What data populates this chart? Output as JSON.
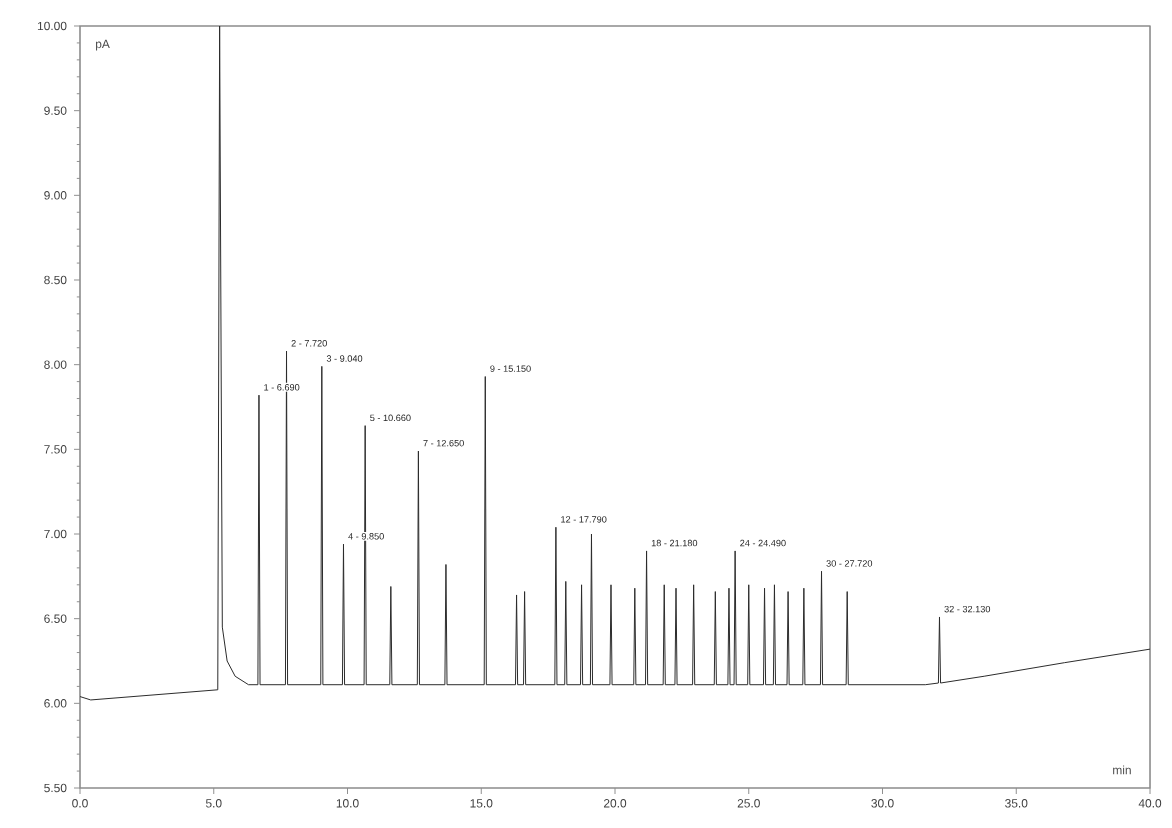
{
  "chart_data": {
    "type": "line",
    "xlabel": "min",
    "ylabel": "pA",
    "x": [
      0,
      0.4,
      5.15,
      5.22,
      5.32,
      5.5,
      5.8,
      6.3,
      6.65,
      6.69,
      6.73,
      7.68,
      7.72,
      7.76,
      9.0,
      9.04,
      9.08,
      9.81,
      9.85,
      9.89,
      10.62,
      10.66,
      10.7,
      11.58,
      11.62,
      11.66,
      12.61,
      12.65,
      12.69,
      13.64,
      13.68,
      13.72,
      15.11,
      15.15,
      15.19,
      16.28,
      16.32,
      16.36,
      16.58,
      16.62,
      16.66,
      17.75,
      17.79,
      17.83,
      18.12,
      18.16,
      18.2,
      18.71,
      18.75,
      18.79,
      19.08,
      19.12,
      19.16,
      19.81,
      19.85,
      19.89,
      20.7,
      20.74,
      20.78,
      21.14,
      21.18,
      21.22,
      21.8,
      21.84,
      21.88,
      22.24,
      22.28,
      22.32,
      22.9,
      22.94,
      22.98,
      23.71,
      23.75,
      23.79,
      24.22,
      24.26,
      24.3,
      24.45,
      24.49,
      24.53,
      24.96,
      25.0,
      25.04,
      25.55,
      25.59,
      25.63,
      25.92,
      25.96,
      26.0,
      26.43,
      26.47,
      26.51,
      27.02,
      27.06,
      27.1,
      27.68,
      27.72,
      27.76,
      28.64,
      28.68,
      28.72,
      31.6,
      32.09,
      32.13,
      32.17,
      33.8,
      36.8,
      40
    ],
    "series": [
      {
        "color": "#2b2b2b",
        "values": [
          6.04,
          6.02,
          6.08,
          10.0,
          6.45,
          6.25,
          6.16,
          6.11,
          6.11,
          7.82,
          6.11,
          6.11,
          8.08,
          6.11,
          6.11,
          7.99,
          6.11,
          6.11,
          6.94,
          6.11,
          6.11,
          7.64,
          6.11,
          6.11,
          6.69,
          6.11,
          6.11,
          7.49,
          6.11,
          6.11,
          6.82,
          6.11,
          6.11,
          7.93,
          6.11,
          6.11,
          6.64,
          6.11,
          6.11,
          6.66,
          6.11,
          6.11,
          7.04,
          6.11,
          6.11,
          6.72,
          6.11,
          6.11,
          6.7,
          6.11,
          6.11,
          7.0,
          6.11,
          6.11,
          6.7,
          6.11,
          6.11,
          6.68,
          6.11,
          6.11,
          6.9,
          6.11,
          6.11,
          6.7,
          6.11,
          6.11,
          6.68,
          6.11,
          6.11,
          6.7,
          6.11,
          6.11,
          6.66,
          6.11,
          6.11,
          6.68,
          6.11,
          6.11,
          6.9,
          6.11,
          6.11,
          6.7,
          6.11,
          6.11,
          6.68,
          6.11,
          6.11,
          6.7,
          6.11,
          6.11,
          6.66,
          6.11,
          6.11,
          6.68,
          6.11,
          6.11,
          6.78,
          6.11,
          6.11,
          6.66,
          6.11,
          6.11,
          6.12,
          6.51,
          6.12,
          6.16,
          6.24,
          6.32
        ]
      }
    ],
    "xlim": [
      0,
      40
    ],
    "xticks": [
      {
        "value": 0,
        "label": "0.0"
      },
      {
        "value": 5,
        "label": "5.0"
      },
      {
        "value": 10,
        "label": "10.0"
      },
      {
        "value": 15,
        "label": "15.0"
      },
      {
        "value": 20,
        "label": "20.0"
      },
      {
        "value": 25,
        "label": "25.0"
      },
      {
        "value": 30,
        "label": "30.0"
      },
      {
        "value": 35,
        "label": "35.0"
      },
      {
        "value": 40,
        "label": "40.0"
      }
    ],
    "ylim": [
      5.5,
      10
    ],
    "yticks": [
      {
        "value": 5.5,
        "label": "5.50"
      },
      {
        "value": 6,
        "label": "6.00"
      },
      {
        "value": 6.5,
        "label": "6.50"
      },
      {
        "value": 7,
        "label": "7.00"
      },
      {
        "value": 7.5,
        "label": "7.50"
      },
      {
        "value": 8,
        "label": "8.00"
      },
      {
        "value": 8.5,
        "label": "8.50"
      },
      {
        "value": 9,
        "label": "9.00"
      },
      {
        "value": 9.5,
        "label": "9.50"
      },
      {
        "value": 10,
        "label": "10.00"
      }
    ],
    "annotations": [
      {
        "text": "1 - 6.690",
        "x": 6.69,
        "y": 7.82
      },
      {
        "text": "2 - 7.720",
        "x": 7.72,
        "y": 8.08
      },
      {
        "text": "3 - 9.040",
        "x": 9.04,
        "y": 7.99
      },
      {
        "text": "4 - 9.850",
        "x": 9.85,
        "y": 6.94
      },
      {
        "text": "5 - 10.660",
        "x": 10.66,
        "y": 7.64
      },
      {
        "text": "7 - 12.650",
        "x": 12.65,
        "y": 7.49
      },
      {
        "text": "9 - 15.150",
        "x": 15.15,
        "y": 7.93
      },
      {
        "text": "12 - 17.790",
        "x": 17.79,
        "y": 7.04
      },
      {
        "text": "18 - 21.180",
        "x": 21.18,
        "y": 6.9
      },
      {
        "text": "24 - 24.490",
        "x": 24.49,
        "y": 6.9
      },
      {
        "text": "30 - 27.720",
        "x": 27.72,
        "y": 6.78
      },
      {
        "text": "32 - 32.130",
        "x": 32.13,
        "y": 6.51
      }
    ]
  }
}
